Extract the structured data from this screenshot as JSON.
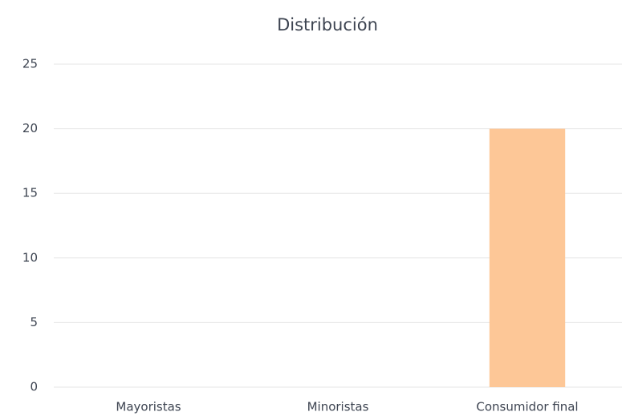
{
  "chart_data": {
    "type": "bar",
    "title": "Distribución",
    "categories": [
      "Mayoristas",
      "Minoristas",
      "Consumidor final"
    ],
    "values": [
      0,
      0,
      20
    ],
    "color": "#fdc797",
    "ylim": [
      0,
      25
    ],
    "yticks": [
      0,
      5,
      10,
      15,
      20,
      25
    ],
    "grid": true
  }
}
